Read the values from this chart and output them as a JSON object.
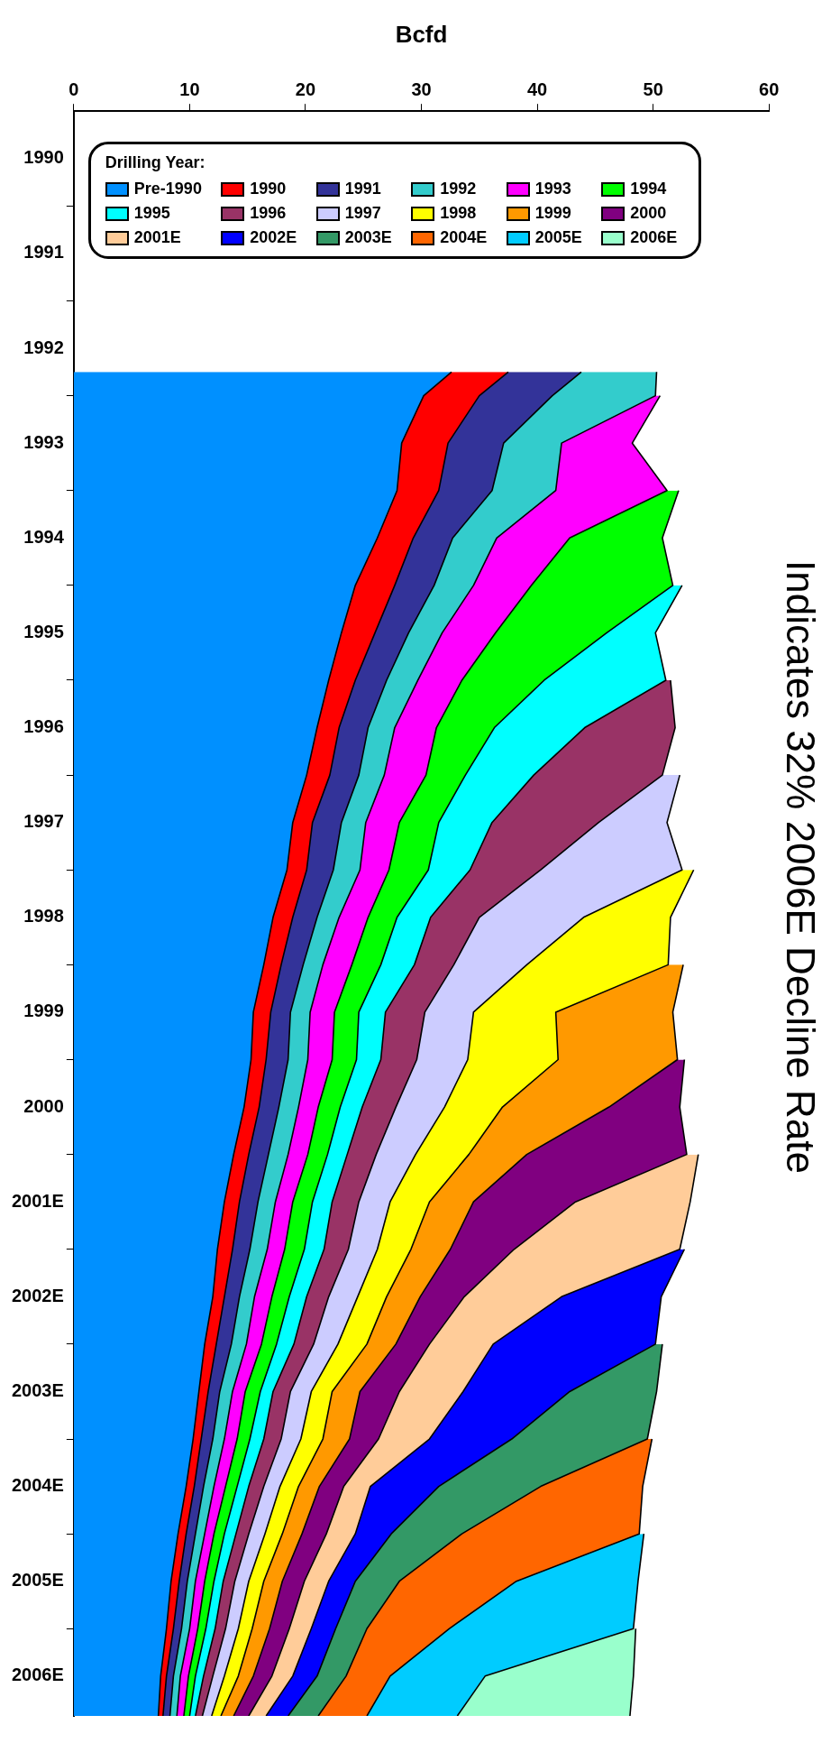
{
  "chart_data": {
    "type": "area",
    "title": "Indicates 32% 2006E Decline Rate",
    "xlabel": "Bcfd",
    "legend_title": "Drilling Year:",
    "stacked": true,
    "orientation": "horizontal",
    "legend": "top left",
    "grid": false,
    "x": [
      1992.75,
      1993,
      1993.5,
      1994,
      1994.5,
      1995,
      1995.5,
      1996,
      1996.5,
      1997,
      1997.5,
      1998,
      1998.5,
      1999,
      1999.5,
      2000,
      2000.5,
      2001,
      2001.5,
      2002,
      2002.5,
      2003,
      2003.5,
      2004,
      2004.5,
      2005,
      2005.5,
      2006,
      2006.5,
      2006.92
    ],
    "xlim": [
      0,
      60
    ],
    "xticks": [
      0,
      10,
      20,
      30,
      40,
      50,
      60
    ],
    "ylim": [
      2006.92,
      1990
    ],
    "yticks": [
      {
        "value": 1990.5,
        "label": "1990"
      },
      {
        "value": 1991,
        "label": null
      },
      {
        "value": 1991.5,
        "label": "1991"
      },
      {
        "value": 1992,
        "label": null
      },
      {
        "value": 1992.5,
        "label": "1992"
      },
      {
        "value": 1993,
        "label": null
      },
      {
        "value": 1993.5,
        "label": "1993"
      },
      {
        "value": 1994,
        "label": null
      },
      {
        "value": 1994.5,
        "label": "1994"
      },
      {
        "value": 1995,
        "label": null
      },
      {
        "value": 1995.5,
        "label": "1995"
      },
      {
        "value": 1996,
        "label": null
      },
      {
        "value": 1996.5,
        "label": "1996"
      },
      {
        "value": 1997,
        "label": null
      },
      {
        "value": 1997.5,
        "label": "1997"
      },
      {
        "value": 1998,
        "label": null
      },
      {
        "value": 1998.5,
        "label": "1998"
      },
      {
        "value": 1999,
        "label": null
      },
      {
        "value": 1999.5,
        "label": "1999"
      },
      {
        "value": 2000,
        "label": null
      },
      {
        "value": 2000.5,
        "label": "2000"
      },
      {
        "value": 2001,
        "label": null
      },
      {
        "value": 2001.5,
        "label": "2001E"
      },
      {
        "value": 2002,
        "label": null
      },
      {
        "value": 2002.5,
        "label": "2002E"
      },
      {
        "value": 2003,
        "label": null
      },
      {
        "value": 2003.5,
        "label": "2003E"
      },
      {
        "value": 2004,
        "label": null
      },
      {
        "value": 2004.5,
        "label": "2004E"
      },
      {
        "value": 2005,
        "label": null
      },
      {
        "value": 2005.5,
        "label": "2005E"
      },
      {
        "value": 2006,
        "label": null
      },
      {
        "value": 2006.5,
        "label": "2006E"
      }
    ],
    "series": [
      {
        "name": "Pre-1990",
        "color": "#0090ff",
        "values": [
          32.6,
          30.2,
          28.3,
          27.9,
          26.2,
          24.3,
          23.1,
          22.0,
          21.0,
          20.1,
          18.9,
          18.4,
          17.2,
          16.4,
          15.5,
          15.3,
          14.7,
          13.8,
          13.0,
          12.4,
          12.0,
          11.3,
          10.8,
          10.3,
          9.7,
          9.0,
          8.4,
          8.0,
          7.5,
          7.3
        ]
      },
      {
        "name": "1990",
        "color": "#ff0000",
        "values": [
          4.9,
          4.8,
          4.0,
          3.6,
          3.1,
          3.4,
          2.9,
          2.3,
          1.9,
          2.0,
          1.7,
          1.7,
          1.7,
          1.5,
          1.5,
          1.3,
          1.3,
          1.3,
          1.3,
          1.3,
          1.0,
          1.0,
          0.8,
          0.7,
          0.7,
          0.7,
          0.7,
          0.6,
          0.5,
          0.4
        ]
      },
      {
        "name": "1991",
        "color": "#333399",
        "values": [
          6.3,
          6.3,
          4.8,
          4.6,
          3.4,
          3.4,
          2.9,
          2.7,
          2.5,
          2.5,
          2.5,
          2.3,
          2.1,
          1.9,
          1.7,
          1.9,
          1.7,
          1.7,
          1.6,
          1.5,
          1.3,
          1.3,
          1.0,
          1.0,
          0.8,
          0.8,
          0.7,
          0.7,
          0.6,
          0.6
        ]
      },
      {
        "name": "1992",
        "color": "#33cccc",
        "values": [
          6.5,
          8.9,
          5.0,
          5.5,
          3.8,
          3.4,
          2.9,
          2.7,
          2.3,
          2.2,
          2.1,
          2.3,
          1.9,
          1.7,
          1.7,
          1.7,
          1.7,
          1.7,
          1.5,
          1.5,
          1.3,
          1.3,
          1.1,
          1.0,
          0.9,
          0.8,
          0.7,
          0.7,
          0.6,
          0.6
        ]
      },
      {
        "name": "1993",
        "color": "#ff00ff",
        "values": [
          null,
          0.4,
          6.1,
          9.6,
          6.3,
          5.0,
          4.6,
          3.8,
          3.6,
          3.6,
          2.9,
          2.5,
          2.5,
          2.5,
          2.1,
          2.1,
          1.7,
          1.7,
          1.5,
          1.5,
          1.5,
          1.3,
          1.1,
          1.1,
          1.0,
          0.8,
          0.8,
          0.7,
          0.7,
          0.6
        ]
      },
      {
        "name": "1994",
        "color": "#00ff00",
        "values": [
          null,
          null,
          null,
          1.0,
          8.0,
          12.2,
          9.6,
          7.1,
          5.0,
          3.4,
          3.4,
          3.4,
          2.5,
          2.5,
          2.1,
          2.1,
          1.9,
          1.7,
          1.7,
          1.7,
          1.5,
          1.3,
          1.3,
          1.1,
          1.0,
          0.9,
          0.8,
          0.7,
          0.6,
          0.5
        ]
      },
      {
        "name": "1995",
        "color": "#00ffff",
        "values": [
          null,
          null,
          null,
          null,
          null,
          0.8,
          4.2,
          10.5,
          7.8,
          5.9,
          4.6,
          3.6,
          2.9,
          2.9,
          2.3,
          2.1,
          1.9,
          1.7,
          1.7,
          1.7,
          1.5,
          1.5,
          1.1,
          1.2,
          1.0,
          1.0,
          0.8,
          0.8,
          0.7,
          0.5
        ]
      },
      {
        "name": "1996",
        "color": "#993366",
        "values": [
          null,
          null,
          null,
          null,
          null,
          null,
          null,
          0.4,
          7.8,
          11.1,
          9.2,
          6.1,
          4.2,
          3.4,
          3.4,
          3.1,
          2.9,
          2.5,
          2.3,
          2.1,
          1.9,
          1.7,
          1.5,
          1.5,
          1.3,
          1.1,
          1.0,
          0.9,
          0.8,
          0.6
        ]
      },
      {
        "name": "1997",
        "color": "#ccccff",
        "values": [
          null,
          null,
          null,
          null,
          null,
          null,
          null,
          null,
          null,
          1.5,
          5.9,
          12.2,
          9.0,
          6.3,
          4.2,
          4.4,
          4.2,
          3.4,
          2.7,
          2.5,
          2.5,
          2.1,
          1.8,
          1.7,
          1.4,
          1.4,
          1.2,
          1.1,
          1.0,
          0.8
        ]
      },
      {
        "name": "1998",
        "color": "#ffff00",
        "values": [
          null,
          null,
          null,
          null,
          null,
          null,
          null,
          null,
          null,
          null,
          null,
          1.0,
          7.5,
          12.2,
          7.1,
          7.8,
          5.0,
          4.6,
          3.4,
          2.9,
          2.5,
          2.5,
          1.8,
          1.9,
          1.6,
          1.5,
          1.3,
          1.2,
          1.2,
          0.8
        ]
      },
      {
        "name": "1999",
        "color": "#ff9900",
        "values": [
          null,
          null,
          null,
          null,
          null,
          null,
          null,
          null,
          null,
          null,
          null,
          null,
          null,
          1.3,
          10.1,
          10.3,
          9.2,
          5.0,
          3.8,
          3.4,
          2.9,
          2.5,
          2.4,
          2.3,
          1.8,
          1.7,
          1.6,
          1.5,
          1.3,
          1.1
        ]
      },
      {
        "name": "2000",
        "color": "#800080",
        "values": [
          null,
          null,
          null,
          null,
          null,
          null,
          null,
          null,
          null,
          null,
          null,
          null,
          null,
          null,
          null,
          0.6,
          6.1,
          13.8,
          8.8,
          5.5,
          3.8,
          2.9,
          3.4,
          2.5,
          2.1,
          2.1,
          1.9,
          1.7,
          1.6,
          1.3
        ]
      },
      {
        "name": "2001E",
        "color": "#ffcc99",
        "values": [
          null,
          null,
          null,
          null,
          null,
          null,
          null,
          null,
          null,
          null,
          null,
          null,
          null,
          null,
          null,
          null,
          null,
          1.0,
          9.9,
          14.3,
          8.4,
          5.5,
          5.5,
          4.4,
          2.3,
          2.5,
          2.1,
          1.9,
          1.8,
          1.5
        ]
      },
      {
        "name": "2002E",
        "color": "#0000ff",
        "values": [
          null,
          null,
          null,
          null,
          null,
          null,
          null,
          null,
          null,
          null,
          null,
          null,
          null,
          null,
          null,
          null,
          null,
          null,
          null,
          0.4,
          8.6,
          14.0,
          9.2,
          7.1,
          5.9,
          3.1,
          2.3,
          2.1,
          2.1,
          1.9
        ]
      },
      {
        "name": "2003E",
        "color": "#339966",
        "values": [
          null,
          null,
          null,
          null,
          null,
          null,
          null,
          null,
          null,
          null,
          null,
          null,
          null,
          null,
          null,
          null,
          null,
          null,
          null,
          null,
          null,
          0.6,
          7.5,
          11.7,
          8.8,
          6.1,
          3.8,
          2.7,
          2.5,
          2.6
        ]
      },
      {
        "name": "2004E",
        "color": "#ff6600",
        "values": [
          null,
          null,
          null,
          null,
          null,
          null,
          null,
          null,
          null,
          null,
          null,
          null,
          null,
          null,
          null,
          null,
          null,
          null,
          null,
          null,
          null,
          null,
          null,
          0.4,
          8.8,
          15.3,
          10.1,
          7.1,
          3.8,
          4.2
        ]
      },
      {
        "name": "2005E",
        "color": "#00ccff",
        "values": [
          null,
          null,
          null,
          null,
          null,
          null,
          null,
          null,
          null,
          null,
          null,
          null,
          null,
          null,
          null,
          null,
          null,
          null,
          null,
          null,
          null,
          null,
          null,
          null,
          null,
          0.4,
          10.5,
          15.9,
          8.2,
          7.8
        ]
      },
      {
        "name": "2006E",
        "color": "#99ffcc",
        "values": [
          null,
          null,
          null,
          null,
          null,
          null,
          null,
          null,
          null,
          null,
          null,
          null,
          null,
          null,
          null,
          null,
          null,
          null,
          null,
          null,
          null,
          null,
          null,
          null,
          null,
          null,
          null,
          0.2,
          12.8,
          14.9
        ]
      }
    ]
  }
}
